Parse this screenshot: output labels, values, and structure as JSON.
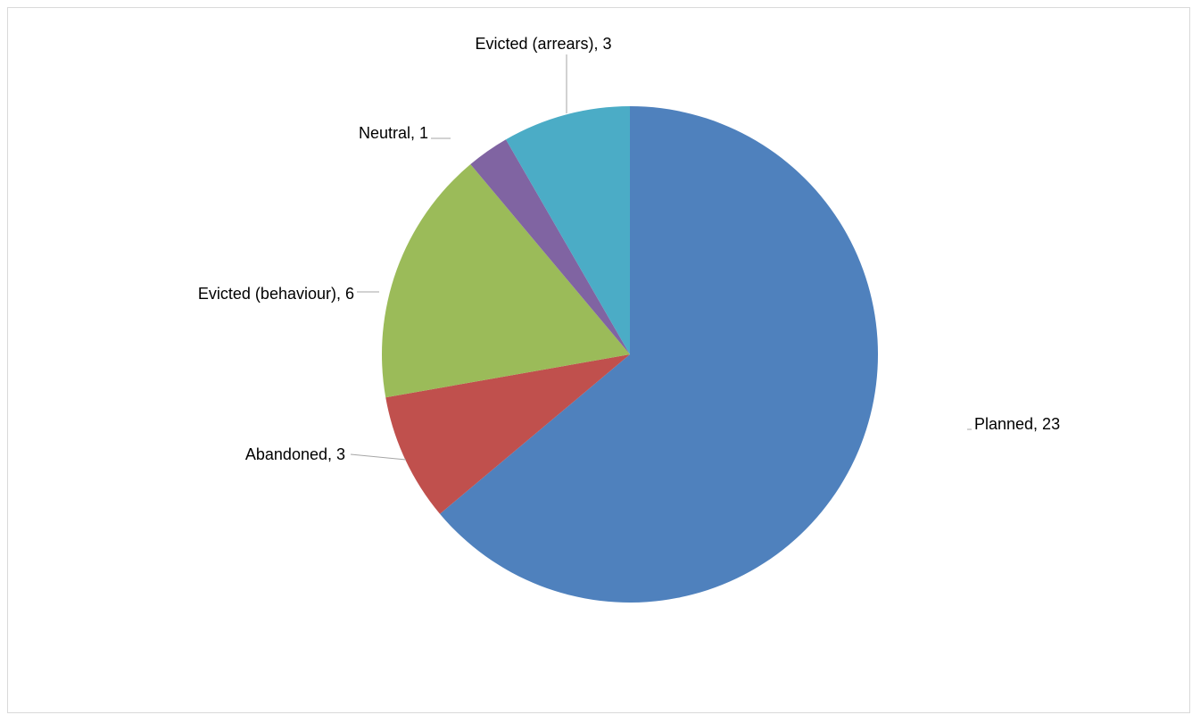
{
  "chart_data": {
    "type": "pie",
    "title": "",
    "slices": [
      {
        "label": "Planned",
        "value": 23,
        "display": "Planned, 23",
        "color": "#4F81BD"
      },
      {
        "label": "Abandoned",
        "value": 3,
        "display": "Abandoned, 3",
        "color": "#C0504D"
      },
      {
        "label": "Evicted (behaviour)",
        "value": 6,
        "display": "Evicted (behaviour), 6",
        "color": "#9BBB59"
      },
      {
        "label": "Neutral",
        "value": 1,
        "display": "Neutral, 1",
        "color": "#8064A2"
      },
      {
        "label": "Evicted (arrears)",
        "value": 3,
        "display": "Evicted (arrears), 3",
        "color": "#4BACC6"
      }
    ],
    "start_angle": "12 o'clock",
    "direction": "clockwise",
    "data_labels": "outside with leader lines",
    "legend": "none"
  }
}
